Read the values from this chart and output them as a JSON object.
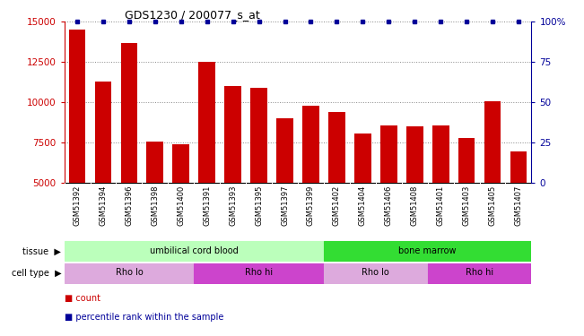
{
  "title": "GDS1230 / 200077_s_at",
  "samples": [
    "GSM51392",
    "GSM51394",
    "GSM51396",
    "GSM51398",
    "GSM51400",
    "GSM51391",
    "GSM51393",
    "GSM51395",
    "GSM51397",
    "GSM51399",
    "GSM51402",
    "GSM51404",
    "GSM51406",
    "GSM51408",
    "GSM51401",
    "GSM51403",
    "GSM51405",
    "GSM51407"
  ],
  "counts": [
    14500,
    11300,
    13700,
    7600,
    7400,
    12500,
    11000,
    10900,
    9000,
    9800,
    9400,
    8100,
    8600,
    8500,
    8600,
    7800,
    10100,
    6950
  ],
  "ylim_left": [
    5000,
    15000
  ],
  "ylim_right": [
    0,
    100
  ],
  "yticks_left": [
    5000,
    7500,
    10000,
    12500,
    15000
  ],
  "yticks_right": [
    0,
    25,
    50,
    75,
    100
  ],
  "bar_color": "#cc0000",
  "dot_color": "#000099",
  "tissue_labels": [
    {
      "label": "umbilical cord blood",
      "start": 0,
      "end": 9,
      "color": "#bbffbb"
    },
    {
      "label": "bone marrow",
      "start": 10,
      "end": 17,
      "color": "#33dd33"
    }
  ],
  "celltype_labels": [
    {
      "label": "Rho lo",
      "start": 0,
      "end": 4,
      "color": "#ddaadd"
    },
    {
      "label": "Rho hi",
      "start": 5,
      "end": 9,
      "color": "#cc44cc"
    },
    {
      "label": "Rho lo",
      "start": 10,
      "end": 13,
      "color": "#ddaadd"
    },
    {
      "label": "Rho hi",
      "start": 14,
      "end": 17,
      "color": "#cc44cc"
    }
  ],
  "legend_count_color": "#cc0000",
  "legend_pct_color": "#000099",
  "grid_dotted_color": "#888888",
  "xtick_bg": "#bbbbbb"
}
